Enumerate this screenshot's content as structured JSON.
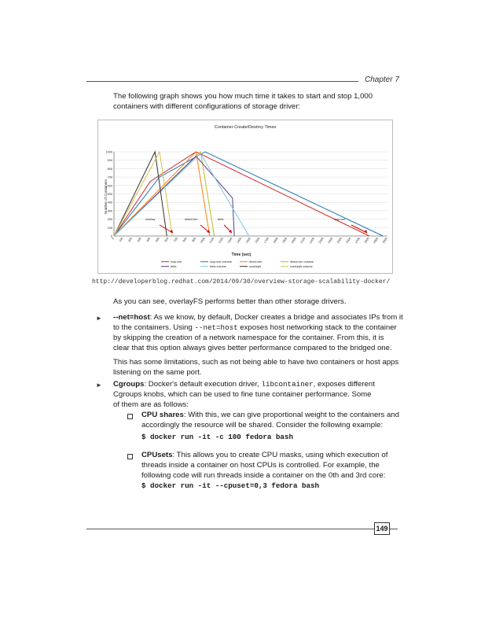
{
  "header": {
    "chapter": "Chapter 7"
  },
  "intro": {
    "line1": "The following graph shows you how much time it takes to start and stop 1,000",
    "line2": "containers with different configurations of storage driver:"
  },
  "chart_data": {
    "type": "line",
    "title": "Container Create/Destroy Times",
    "xlabel": "Time (sec)",
    "ylabel": "Number of Containers",
    "xlim": [
      0,
      3000
    ],
    "ylim": [
      0,
      1000
    ],
    "yticks": [
      0,
      100,
      200,
      300,
      400,
      500,
      600,
      700,
      800,
      900,
      1000
    ],
    "xticks": [
      0,
      100,
      200,
      300,
      400,
      500,
      600,
      700,
      800,
      900,
      1000,
      1100,
      1200,
      1300,
      1400,
      1500,
      1600,
      1700,
      1800,
      1900,
      2000,
      2100,
      2200,
      2300,
      2400,
      2500,
      2600,
      2700,
      2800,
      2900,
      3000
    ],
    "grid": true,
    "legend_position": "bottom",
    "annotations": [
      "overlay",
      "direct-lvm",
      "btrfs",
      "loop-lvm"
    ],
    "series": [
      {
        "name": "loop-lvm",
        "color": "#d62728",
        "x": [
          0,
          400,
          900,
          2800
        ],
        "y": [
          0,
          650,
          1000,
          0
        ]
      },
      {
        "name": "loop-lvm-volume",
        "color": "#1f77b4",
        "x": [
          0,
          500,
          1000,
          2950
        ],
        "y": [
          0,
          700,
          1000,
          0
        ]
      },
      {
        "name": "direct-lvm",
        "color": "#ff7f0e",
        "x": [
          0,
          900,
          1050
        ],
        "y": [
          0,
          1000,
          0
        ]
      },
      {
        "name": "direct-lvm-volume",
        "color": "#bcbd22",
        "x": [
          0,
          950,
          1100
        ],
        "y": [
          0,
          1000,
          0
        ]
      },
      {
        "name": "btrfs",
        "color": "#5b3a8a",
        "x": [
          0,
          900,
          1300,
          1320
        ],
        "y": [
          0,
          950,
          450,
          0
        ]
      },
      {
        "name": "btrfs-volume",
        "color": "#7fc4e8",
        "x": [
          0,
          950,
          1480
        ],
        "y": [
          0,
          980,
          0
        ]
      },
      {
        "name": "overlayfs",
        "color": "#333333",
        "x": [
          0,
          450,
          580
        ],
        "y": [
          0,
          1000,
          0
        ]
      },
      {
        "name": "overlayfs-volume",
        "color": "#d4c24a",
        "x": [
          0,
          500,
          640
        ],
        "y": [
          0,
          1000,
          0
        ]
      }
    ]
  },
  "figure_url": "http://developerblog.redhat.com/2014/09/30/overview-storage-scalability-docker/",
  "para_overlay": "As you can see, overlayFS performs better than other storage drivers.",
  "net_host": {
    "term": "--net=host",
    "l1": ": As we know, by default, Docker creates a bridge and associates IPs from it",
    "l2a": "to the containers. Using ",
    "l2code": "--net=host",
    "l2b": " exposes host networking stack to the container",
    "l3": "by skipping the creation of a network namespace for the container. From this, it is",
    "l4": "clear that this option always gives better performance compared to the bridged one.",
    "l5": "This has some limitations, such as not being able to have two containers or host apps",
    "l6": "listening on the same port."
  },
  "cgroups": {
    "term": "Cgroups",
    "l1a": ": Docker's default execution driver, ",
    "l1code": "libcontainer",
    "l1b": ", exposes different",
    "l2": "Cgroups knobs, which can be used to fine tune container performance. Some",
    "l3": "of them are as follows:"
  },
  "cpu_shares": {
    "term": "CPU shares",
    "l1": ": With this, we can give proportional weight to the containers and",
    "l2": "accordingly the resource will be shared. Consider the following example:",
    "code": "$ docker run -it -c 100 fedora bash"
  },
  "cpusets": {
    "term": "CPUsets",
    "l1": ": This allows you to create CPU masks, using which execution of",
    "l2": "threads inside a container on host CPUs is controlled. For example, the",
    "l3": "following code will run threads inside a container on the 0th and 3rd core:",
    "code": "$ docker run -it  --cpuset=0,3 fedora bash"
  },
  "footer": {
    "page_number": "149"
  }
}
